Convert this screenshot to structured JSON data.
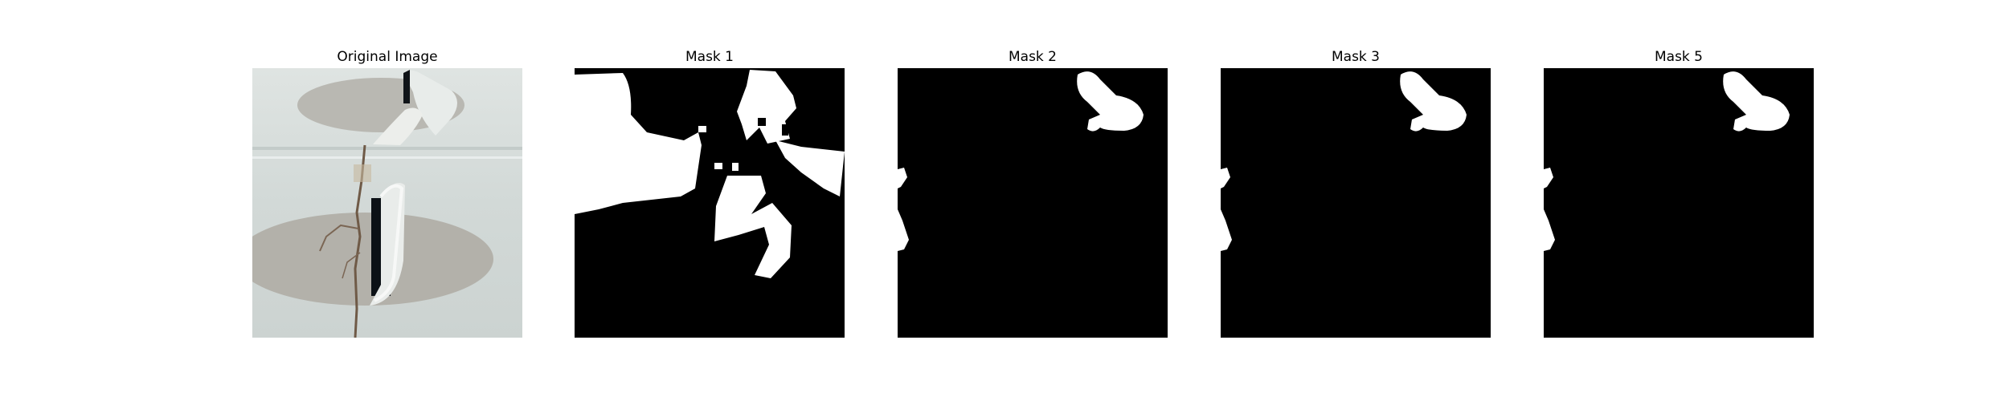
{
  "figure": {
    "panels": [
      {
        "title": "Original Image",
        "kind": "photo"
      },
      {
        "title": "Mask 1",
        "kind": "mask"
      },
      {
        "title": "Mask 2",
        "kind": "mask"
      },
      {
        "title": "Mask 3",
        "kind": "mask"
      },
      {
        "title": "Mask 5",
        "kind": "mask"
      }
    ]
  },
  "colors": {
    "background": "#ffffff",
    "mask_fg": "#ffffff",
    "mask_bg": "#000000",
    "wall": "#d6dcd9",
    "cup_shadow": "#b4b3ad",
    "crack": "#6f5a47"
  }
}
